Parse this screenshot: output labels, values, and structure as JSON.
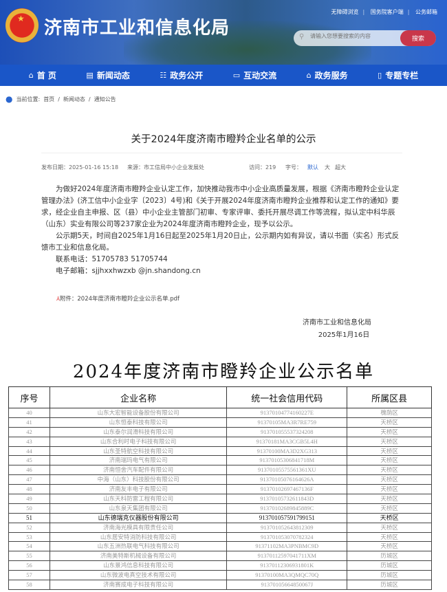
{
  "header": {
    "site_title": "济南市工业和信息化局",
    "top_links": [
      "无障碍浏览",
      "国务院客户端",
      "公务邮箱"
    ],
    "search_placeholder": "请输入您想要搜索的内容",
    "search_button": "搜索"
  },
  "nav": [
    {
      "label": "首 页",
      "icon": "home-icon"
    },
    {
      "label": "新闻动态",
      "icon": "news-icon"
    },
    {
      "label": "政务公开",
      "icon": "gov-icon"
    },
    {
      "label": "互动交流",
      "icon": "chat-icon"
    },
    {
      "label": "政务服务",
      "icon": "service-icon"
    },
    {
      "label": "专题专栏",
      "icon": "topic-icon"
    }
  ],
  "breadcrumb": {
    "label": "当前位置:",
    "items": [
      "首页",
      "新闻动态",
      "通知公告"
    ],
    "sep": "/"
  },
  "article": {
    "title": "关于2024年度济南市瞪羚企业名单的公示",
    "meta": {
      "date": "发布日期：2025-01-16 15:18",
      "source": "来源：市工信局中小企业发展处",
      "visits": "访问：219",
      "font_label": "字号：",
      "font_sizes": [
        "默认",
        "大",
        "超大"
      ]
    },
    "paragraphs": [
      "为做好2024年度济南市瞪羚企业认定工作，加快推动我市中小企业高质量发展，根据《济南市瞪羚企业认定管理办法》(济工信中小企业字〔2023〕4号)和《关于开展2024年度济南市瞪羚企业推荐和认定工作的通知》要求，经企业自主申报、区（县）中小企业主管部门初审、专家评审、委托开展尽调工作等流程，拟认定中科华辰（山东）实业有限公司等237家企业为2024年度济南市瞪羚企业，现予以公示。",
      "公示期5天，时间自2025年1月16日起至2025年1月20日止，公示期内如有异议，请以书面（实名）形式反馈市工业和信息化局。",
      "联系电话：51705783 51705744",
      "电子邮箱：sjjhxxhwzxb @jn.shandong.cn"
    ],
    "attachment": "附件：2024年度济南市瞪羚企业公示名单.pdf",
    "signature": "济南市工业和信息化局",
    "sign_date": "2025年1月16日"
  },
  "list": {
    "title": "2024年度济南市瞪羚企业公示名单",
    "columns": [
      "序号",
      "企业名称",
      "统一社会信用代码",
      "所属区县"
    ],
    "rows": [
      [
        "40",
        "山东大宏智能设备股份有限公司",
        "91370104774160227E",
        "槐荫区"
      ],
      [
        "41",
        "山东恒泰科技有限公司",
        "91370105MA3R7RE759",
        "天桥区"
      ],
      [
        "42",
        "山东泰尔润滑科技有限公司",
        "913701055537324208",
        "天桥区"
      ],
      [
        "43",
        "山东合利时电子科技有限公司",
        "91370181MA3CGB5L4H",
        "天桥区"
      ],
      [
        "44",
        "山东圣特航空科技有限公司",
        "91370100MA3D2XG313",
        "天桥区"
      ],
      [
        "45",
        "济南瑞玛电气有限公司",
        "91370105306841718M",
        "天桥区"
      ],
      [
        "46",
        "济南恒舍汽车配件有限公司",
        "91370105575561361XU",
        "天桥区"
      ],
      [
        "47",
        "中海（山东）科技股份有限公司",
        "91370105076164626A",
        "天桥区"
      ],
      [
        "48",
        "济南友丰电子有限公司",
        "91370102697467136F",
        "天桥区"
      ],
      [
        "49",
        "山东天科防雷工程有限公司",
        "91370105732611843D",
        "天桥区"
      ],
      [
        "50",
        "山东泉天集团有限公司",
        "91370102689845889C",
        "天桥区"
      ],
      [
        "51",
        "山东德瑞克仪器股份有限公司",
        "913701057591799151",
        "天桥区"
      ],
      [
        "52",
        "济南海光模具有限责任公司",
        "913701052643812309",
        "天桥区"
      ],
      [
        "53",
        "山东居安特消防科技有限公司",
        "913701053070782324",
        "天桥区"
      ],
      [
        "54",
        "山东五洲热联电气科技有限公司",
        "91371102MA3PNBMC9D",
        "天桥区"
      ],
      [
        "55",
        "济南美特斯机械设备有限公司",
        "91370112597041711XM",
        "历城区"
      ],
      [
        "56",
        "山东景鸿信息科技有限公司",
        "91370112306931801K",
        "历城区"
      ],
      [
        "57",
        "山东微波电真空技术有限公司",
        "91370100MA3QMQC70Q",
        "历城区"
      ],
      [
        "58",
        "济南赛成电子科技有限公司",
        "91370105664850067J",
        "历城区"
      ]
    ],
    "highlighted_row": "51"
  }
}
